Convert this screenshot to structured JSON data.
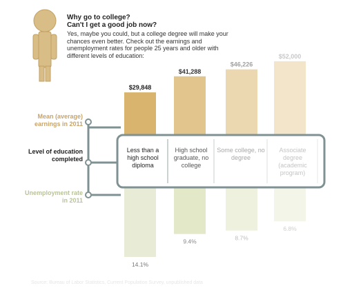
{
  "intro": {
    "title_line1": "Why go to college?",
    "title_line2": "Can't I get a good job now?",
    "body": "Yes, maybe you could, but a college degree will make your chances even better. Check out the earnings and unemployment rates for people 25 years and older with different levels of education:"
  },
  "row_labels": {
    "mean": "Mean (average) earnings in 2011",
    "level": "Level of education completed",
    "unemployment": "Unemployment rate in 2011"
  },
  "categories": [
    {
      "label": "Less than a high school diploma"
    },
    {
      "label": "High school graduate, no college"
    },
    {
      "label": "Some college, no degree"
    },
    {
      "label": "Associate degree (academic program)"
    }
  ],
  "chart_data": [
    {
      "type": "bar",
      "title": "Mean (average) earnings in 2011",
      "categories": [
        "Less than a high school diploma",
        "High school graduate, no college",
        "Some college, no degree",
        "Associate degree (academic program)"
      ],
      "values": [
        29848,
        41288,
        46226,
        52000
      ],
      "data_labels": [
        "$29,848",
        "$41,288",
        "$46,226",
        "$52,000"
      ],
      "ylim": [
        0,
        60000
      ],
      "grid": false,
      "colors": [
        "#d8b46e",
        "#e2c58c",
        "#ecd8b0",
        "#f3e5c9"
      ]
    },
    {
      "type": "bar",
      "title": "Unemployment rate in 2011",
      "categories": [
        "Less than a high school diploma",
        "High school graduate, no college",
        "Some college, no degree",
        "Associate degree (academic program)"
      ],
      "values": [
        14.1,
        9.4,
        8.7,
        6.8
      ],
      "data_labels": [
        "14.1%",
        "9.4%",
        "8.7%",
        "6.8%"
      ],
      "ylim": [
        0,
        15
      ],
      "grid": false,
      "colors": [
        "#e8ecd6",
        "#e2e8c8",
        "#edf1dd",
        "#f2f5e8"
      ]
    }
  ],
  "source": "Source: Bureau of Labor Statistics, Current Population Survey, unpublished data",
  "colors": {
    "earnings_accent": "#c8a46a",
    "unemployment_accent": "#b9c29a",
    "connector": "#7f9192"
  }
}
